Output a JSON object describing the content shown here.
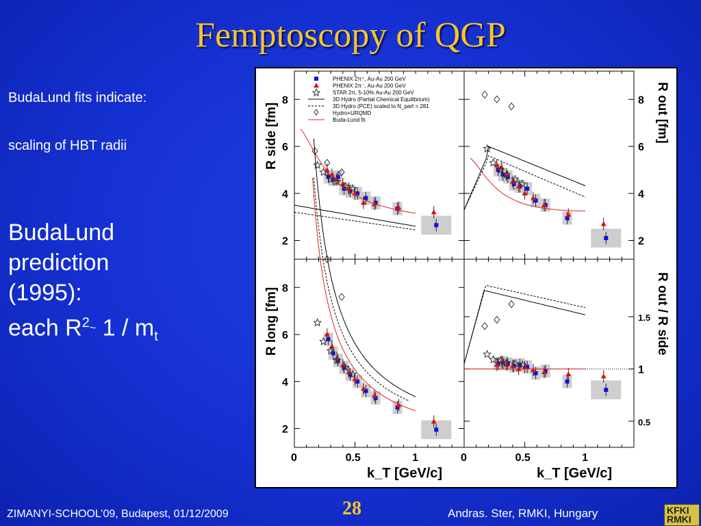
{
  "slide": {
    "title": "Femptoscopy of  QGP",
    "line1": "BudaLund fits indicate:",
    "line2": "scaling of HBT radii",
    "big1": "BudaLund",
    "big2": "prediction",
    "big3": "(1995):",
    "big4_pre": " each R",
    "big4_sup": "2",
    "big4_tilde": "~",
    "big4_post": " 1 / m",
    "big4_sub": "t",
    "footer_left": "ZIMANYI-SCHOOL’09, Budapest, 01/12/2009",
    "page_number": "28",
    "footer_right": "Andras. Ster,  RMKI, Hungary",
    "logo_text": "KFKI RMKI"
  },
  "colors": {
    "title": "#f4c430",
    "background": "#1530d0",
    "phenix_pos": "#1010e0",
    "phenix_neg": "#e01010",
    "fit": "#e02020"
  },
  "chart_data": [
    {
      "type": "scatter",
      "panel": "top-left",
      "ylabel": "R_side [fm]",
      "xlabel": "",
      "xlim": [
        0,
        1.4
      ],
      "ylim": [
        1.2,
        9.2
      ],
      "yticks": [
        "2",
        "4",
        "6",
        "8"
      ],
      "legend": [
        "PHENIX 2π⁺, Au-Au 200 GeV",
        "PHENIX 2π⁻, Au-Au 200 GeV",
        "STAR 2π, 5-10% Au-Au 200 GeV",
        "3D Hydro (Partial Chemical Equilibrium)",
        "3D Hydro (PCE) scaled to N_part = 281",
        "Hydro+URQMD",
        "Buda-Lund fit"
      ],
      "series": [
        {
          "name": "PHENIX 2π⁺, Au-Au 200 GeV",
          "x": [
            0.28,
            0.32,
            0.36,
            0.41,
            0.46,
            0.52,
            0.59,
            0.67,
            0.85,
            1.17
          ],
          "y": [
            4.7,
            4.6,
            4.7,
            4.2,
            4.1,
            4.0,
            3.8,
            3.6,
            3.35,
            2.65
          ]
        },
        {
          "name": "PHENIX 2π⁻, Au-Au 200 GeV",
          "x": [
            0.27,
            0.31,
            0.35,
            0.4,
            0.45,
            0.5,
            0.57,
            0.66,
            0.86,
            1.15
          ],
          "y": [
            5.0,
            4.8,
            4.6,
            4.4,
            4.2,
            4.0,
            3.6,
            3.55,
            3.4,
            3.2
          ]
        },
        {
          "name": "STAR 2π, 5-10% Au-Au 200 GeV",
          "x": [
            0.19,
            0.24,
            0.3,
            0.35,
            0.42,
            0.48
          ],
          "y": [
            5.2,
            4.9,
            4.6,
            4.5,
            4.3,
            4.2
          ]
        },
        {
          "name": "Hydro+URQMD",
          "x": [
            0.17,
            0.27,
            0.39
          ],
          "y": [
            5.8,
            5.3,
            4.9
          ]
        }
      ]
    },
    {
      "type": "scatter",
      "panel": "top-right",
      "ylabel": "R_out [fm]",
      "xlim": [
        0,
        1.4
      ],
      "ylim": [
        1.2,
        9.2
      ],
      "yticks": [
        "2",
        "4",
        "6",
        "8"
      ],
      "series": [
        {
          "name": "PHENIX 2π⁺, Au-Au 200 GeV",
          "x": [
            0.28,
            0.32,
            0.36,
            0.41,
            0.46,
            0.52,
            0.59,
            0.67,
            0.85,
            1.17
          ],
          "y": [
            5.0,
            4.8,
            4.7,
            4.4,
            4.3,
            4.2,
            3.7,
            3.5,
            2.95,
            2.1
          ]
        },
        {
          "name": "PHENIX 2π⁻, Au-Au 200 GeV",
          "x": [
            0.27,
            0.31,
            0.35,
            0.4,
            0.45,
            0.5,
            0.57,
            0.66,
            0.86,
            1.15
          ],
          "y": [
            5.2,
            5.1,
            4.8,
            4.5,
            4.3,
            4.0,
            3.8,
            3.5,
            3.1,
            2.7
          ]
        },
        {
          "name": "STAR 2π, 5-10% Au-Au 200 GeV",
          "x": [
            0.19,
            0.24,
            0.3,
            0.35,
            0.42,
            0.48
          ],
          "y": [
            5.9,
            5.3,
            5.0,
            4.8,
            4.6,
            4.4
          ]
        },
        {
          "name": "Hydro+URQMD",
          "x": [
            0.17,
            0.27,
            0.39
          ],
          "y": [
            8.2,
            8.0,
            7.7
          ]
        }
      ]
    },
    {
      "type": "scatter",
      "panel": "bottom-left",
      "ylabel": "R_long [fm]",
      "xlabel": "k_T [GeV/c]",
      "xlim": [
        0,
        1.4
      ],
      "ylim": [
        1.2,
        9.2
      ],
      "xticks": [
        "0",
        "0.5",
        "1"
      ],
      "yticks": [
        "2",
        "4",
        "6",
        "8"
      ],
      "series": [
        {
          "name": "PHENIX 2π⁺, Au-Au 200 GeV",
          "x": [
            0.28,
            0.32,
            0.36,
            0.41,
            0.46,
            0.52,
            0.59,
            0.67,
            0.85,
            1.17
          ],
          "y": [
            5.8,
            5.2,
            4.9,
            4.6,
            4.3,
            4.0,
            3.6,
            3.3,
            2.9,
            1.95
          ]
        },
        {
          "name": "PHENIX 2π⁻, Au-Au 200 GeV",
          "x": [
            0.27,
            0.31,
            0.35,
            0.4,
            0.45,
            0.5,
            0.57,
            0.66,
            0.86,
            1.15
          ],
          "y": [
            6.0,
            5.5,
            5.0,
            4.7,
            4.4,
            4.1,
            3.7,
            3.4,
            3.0,
            2.3
          ]
        },
        {
          "name": "STAR 2π, 5-10% Au-Au 200 GeV",
          "x": [
            0.19,
            0.24,
            0.3,
            0.35,
            0.42,
            0.48
          ],
          "y": [
            6.5,
            5.7,
            5.3,
            4.9,
            4.6,
            4.3
          ]
        },
        {
          "name": "Hydro+URQMD",
          "x": [
            0.27,
            0.39
          ],
          "y": [
            9.2,
            7.6
          ]
        }
      ]
    },
    {
      "type": "scatter",
      "panel": "bottom-right",
      "ylabel": "R_out / R_side",
      "xlabel": "k_T [GeV/c]",
      "xlim": [
        0,
        1.4
      ],
      "ylim": [
        0.25,
        2.05
      ],
      "xticks": [
        "0",
        "0.5",
        "1"
      ],
      "yticks": [
        "0.5",
        "1",
        "1.5"
      ],
      "series": [
        {
          "name": "PHENIX 2π⁺, Au-Au 200 GeV",
          "x": [
            0.28,
            0.32,
            0.36,
            0.41,
            0.46,
            0.52,
            0.59,
            0.67,
            0.85,
            1.17
          ],
          "y": [
            1.05,
            1.06,
            1.05,
            1.03,
            1.04,
            1.02,
            0.96,
            0.98,
            0.88,
            0.8
          ]
        },
        {
          "name": "PHENIX 2π⁻, Au-Au 200 GeV",
          "x": [
            0.27,
            0.31,
            0.35,
            0.4,
            0.45,
            0.5,
            0.57,
            0.66,
            0.86,
            1.15
          ],
          "y": [
            1.04,
            1.07,
            1.04,
            1.03,
            1.0,
            1.02,
            0.99,
            0.97,
            0.95,
            0.93
          ]
        },
        {
          "name": "STAR 2π, 5-10% Au-Au 200 GeV",
          "x": [
            0.19,
            0.24,
            0.3,
            0.35,
            0.42,
            0.48
          ],
          "y": [
            1.14,
            1.09,
            1.08,
            1.06,
            1.05,
            1.04
          ]
        },
        {
          "name": "Hydro+URQMD",
          "x": [
            0.17,
            0.27,
            0.39
          ],
          "y": [
            1.41,
            1.47,
            1.62
          ]
        }
      ]
    }
  ]
}
